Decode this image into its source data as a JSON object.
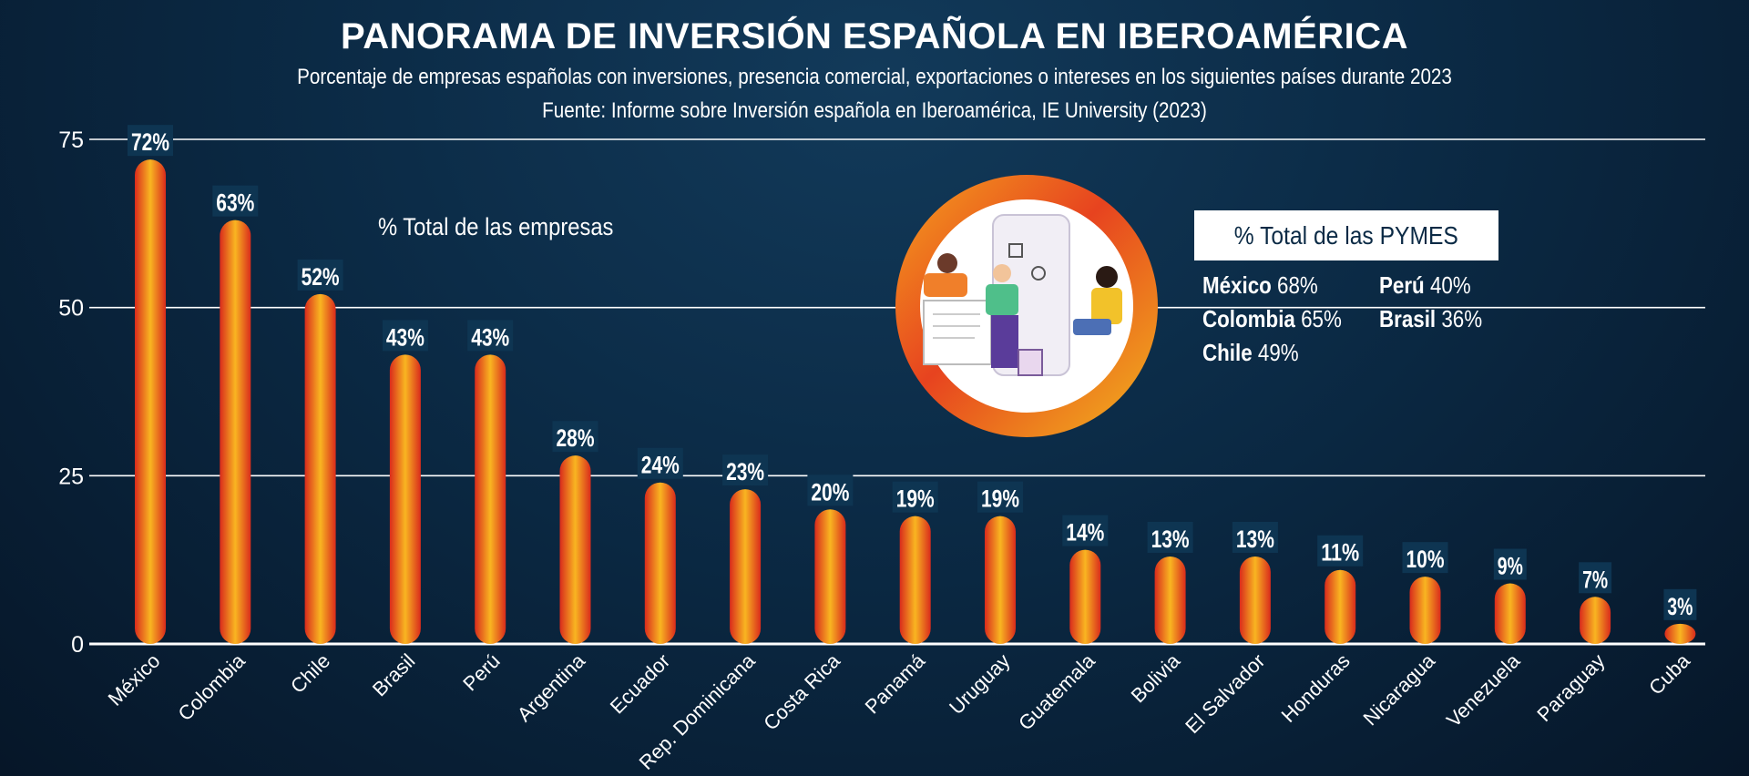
{
  "header": {
    "title": "PANORAMA DE INVERSIÓN ESPAÑOLA EN IBEROAMÉRICA",
    "subtitle": "Porcentaje de empresas españolas con inversiones, presencia comercial, exportaciones o intereses en los siguientes países durante 2023",
    "source": "Fuente: Informe sobre Inversión española en Iberoamérica, IE University (2023)"
  },
  "legend_total": "% Total de las empresas",
  "pymes": {
    "title": "% Total de las PYMES",
    "items": [
      {
        "country": "México",
        "value": "68%"
      },
      {
        "country": "Colombia",
        "value": "65%"
      },
      {
        "country": "Chile",
        "value": "49%"
      },
      {
        "country": "Perú",
        "value": "40%"
      },
      {
        "country": "Brasil",
        "value": "36%"
      }
    ]
  },
  "colors": {
    "background": "#0b2a45",
    "bar_edge": "#e0321e",
    "bar_center": "#f7b01f",
    "label_bg": "#0e3552",
    "gridline": "#ffffff"
  },
  "chart_data": {
    "type": "bar",
    "categories": [
      "México",
      "Colombia",
      "Chile",
      "Brasil",
      "Perú",
      "Argentina",
      "Ecuador",
      "Rep. Dominicana",
      "Costa Rica",
      "Panamá",
      "Uruguay",
      "Guatemala",
      "Bolivia",
      "El Salvador",
      "Honduras",
      "Nicaragua",
      "Venezuela",
      "Paraguay",
      "Cuba"
    ],
    "values": [
      72,
      63,
      52,
      43,
      43,
      28,
      24,
      23,
      20,
      19,
      19,
      14,
      13,
      13,
      11,
      10,
      9,
      7,
      3
    ],
    "value_labels": [
      "72%",
      "63%",
      "52%",
      "43%",
      "43%",
      "28%",
      "24%",
      "23%",
      "20%",
      "19%",
      "19%",
      "14%",
      "13%",
      "13%",
      "11%",
      "10%",
      "9%",
      "7%",
      "3%"
    ],
    "y_ticks": [
      0,
      25,
      50,
      75
    ],
    "ylim": [
      0,
      75
    ],
    "grid": true
  }
}
